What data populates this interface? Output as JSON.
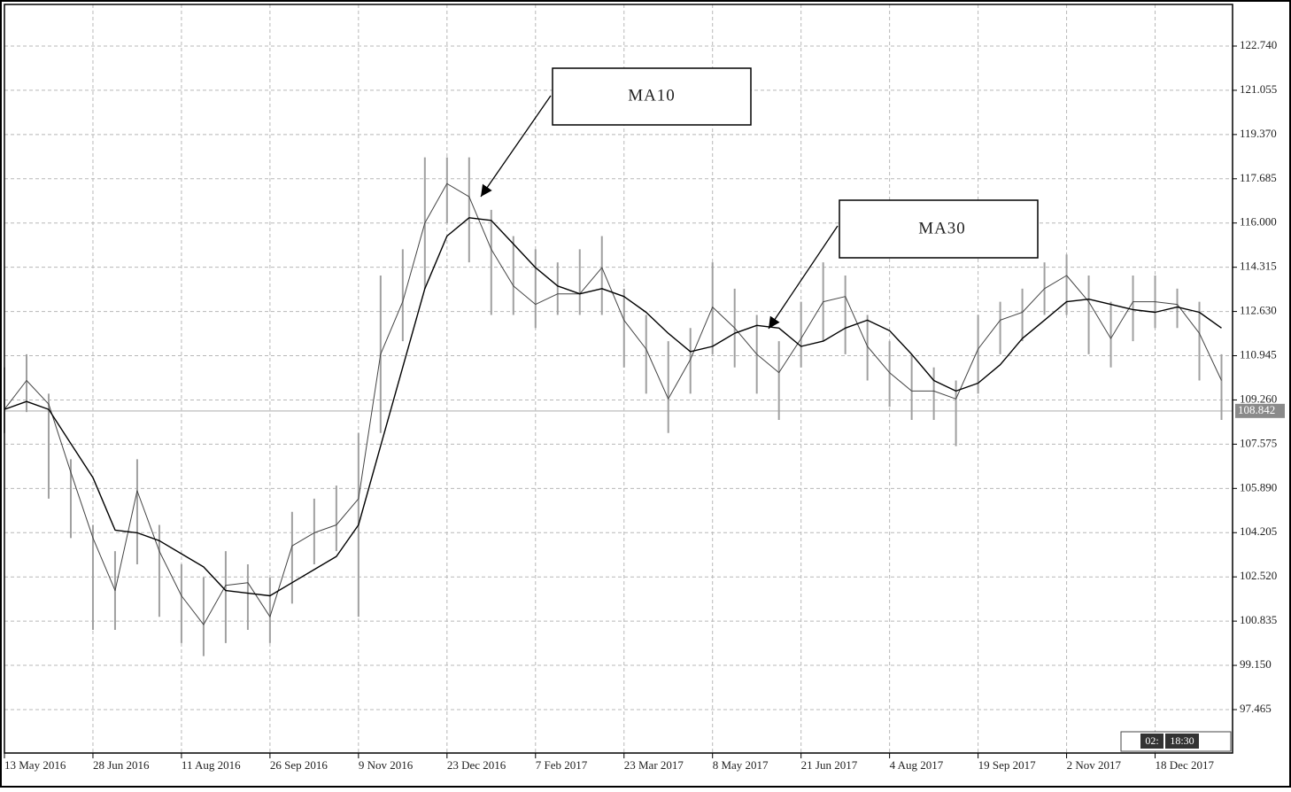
{
  "chart_data": {
    "type": "range_bar",
    "bar_color": "#a0a0a0",
    "x": [
      0,
      8,
      16,
      24,
      32,
      40,
      48,
      56,
      64,
      72,
      80,
      88,
      96,
      104,
      112,
      120,
      128,
      136,
      144,
      152,
      160,
      168,
      176,
      184,
      192,
      200,
      208,
      216,
      224,
      232,
      240,
      248,
      256,
      264,
      272,
      280,
      288,
      296,
      304,
      312,
      320,
      328,
      336,
      344,
      352,
      360,
      368,
      376,
      384,
      392,
      400,
      408,
      416,
      424,
      432,
      440
    ],
    "high": [
      110.5,
      111.0,
      109.5,
      107.0,
      104.5,
      103.5,
      107.0,
      104.5,
      103.0,
      102.5,
      103.5,
      103.0,
      102.5,
      105.0,
      105.5,
      106.0,
      108.0,
      114.0,
      115.0,
      118.5,
      118.5,
      118.5,
      116.5,
      115.5,
      115.0,
      114.5,
      115.0,
      115.5,
      113.5,
      112.5,
      111.5,
      112.0,
      114.5,
      113.5,
      112.5,
      111.5,
      113.0,
      114.5,
      114.0,
      112.5,
      111.5,
      111.0,
      110.5,
      110.0,
      112.5,
      113.0,
      113.5,
      114.5,
      114.8,
      114.0,
      113.0,
      114.0,
      114.0,
      113.5,
      113.0,
      111.0
    ],
    "low": [
      108.0,
      108.8,
      105.5,
      104.0,
      100.5,
      100.5,
      103.0,
      101.0,
      100.0,
      99.5,
      100.0,
      100.5,
      100.0,
      101.5,
      103.0,
      103.5,
      101.0,
      108.0,
      111.5,
      113.5,
      116.0,
      114.5,
      112.5,
      112.5,
      112.0,
      112.5,
      112.5,
      112.5,
      110.5,
      109.5,
      108.0,
      109.5,
      111.0,
      110.5,
      109.5,
      108.5,
      110.5,
      111.5,
      111.0,
      110.0,
      109.0,
      108.5,
      108.5,
      107.5,
      109.5,
      111.0,
      111.5,
      112.5,
      112.5,
      111.0,
      110.5,
      111.5,
      112.0,
      112.0,
      110.0,
      108.5
    ],
    "lines": [
      {
        "label": "MA10",
        "color": "#444444",
        "width": 1,
        "values": [
          108.9,
          110.0,
          109.1,
          106.5,
          104.0,
          102.0,
          105.8,
          103.5,
          101.8,
          100.7,
          102.2,
          102.3,
          101.0,
          103.7,
          104.2,
          104.5,
          105.5,
          111.0,
          113.0,
          116.0,
          117.5,
          117.0,
          115.0,
          113.6,
          112.9,
          113.3,
          113.3,
          114.3,
          112.3,
          111.2,
          109.3,
          110.8,
          112.8,
          112.0,
          111.0,
          110.3,
          111.6,
          113.0,
          113.2,
          111.3,
          110.3,
          109.6,
          109.6,
          109.3,
          111.2,
          112.3,
          112.6,
          113.5,
          114.0,
          113.0,
          111.6,
          113.0,
          113.0,
          112.9,
          111.8,
          110.0
        ]
      },
      {
        "label": "MA30",
        "color": "#000000",
        "width": 1.4,
        "values": [
          108.9,
          109.2,
          108.9,
          107.6,
          106.3,
          104.3,
          104.2,
          103.9,
          103.4,
          102.9,
          102.0,
          101.9,
          101.8,
          102.3,
          102.8,
          103.3,
          104.5,
          107.5,
          110.5,
          113.5,
          115.5,
          116.2,
          116.1,
          115.2,
          114.3,
          113.6,
          113.3,
          113.5,
          113.2,
          112.6,
          111.8,
          111.1,
          111.3,
          111.8,
          112.1,
          112.0,
          111.3,
          111.5,
          112.0,
          112.3,
          111.9,
          111.0,
          110.0,
          109.6,
          109.9,
          110.6,
          111.6,
          112.3,
          113.0,
          113.1,
          112.9,
          112.7,
          112.6,
          112.8,
          112.6,
          112.0
        ]
      }
    ],
    "xlim": [
      0,
      444
    ],
    "xticks": [
      {
        "value": 0,
        "label": "13 May 2016"
      },
      {
        "value": 32,
        "label": "28 Jun 2016"
      },
      {
        "value": 64,
        "label": "11 Aug 2016"
      },
      {
        "value": 96,
        "label": "26 Sep 2016"
      },
      {
        "value": 128,
        "label": "9 Nov 2016"
      },
      {
        "value": 160,
        "label": "23 Dec 2016"
      },
      {
        "value": 192,
        "label": "7 Feb 2017"
      },
      {
        "value": 224,
        "label": "23 Mar 2017"
      },
      {
        "value": 256,
        "label": "8 May 2017"
      },
      {
        "value": 288,
        "label": "21 Jun 2017"
      },
      {
        "value": 320,
        "label": "4 Aug 2017"
      },
      {
        "value": 352,
        "label": "19 Sep 2017"
      },
      {
        "value": 384,
        "label": "2 Nov 2017"
      },
      {
        "value": 416,
        "label": "18 Dec 2017"
      }
    ],
    "ylim": [
      95.811,
      124.326
    ],
    "yticks": [
      {
        "value": 97.465,
        "label": "97.465"
      },
      {
        "value": 99.15,
        "label": "99.150"
      },
      {
        "value": 100.835,
        "label": "100.835"
      },
      {
        "value": 102.52,
        "label": "102.520"
      },
      {
        "value": 104.205,
        "label": "104.205"
      },
      {
        "value": 105.89,
        "label": "105.890"
      },
      {
        "value": 107.575,
        "label": "107.575"
      },
      {
        "value": 109.26,
        "label": "109.260"
      },
      {
        "value": 110.945,
        "label": "110.945"
      },
      {
        "value": 112.63,
        "label": "112.630"
      },
      {
        "value": 114.315,
        "label": "114.315"
      },
      {
        "value": 116.0,
        "label": "116.000"
      },
      {
        "value": 117.685,
        "label": "117.685"
      },
      {
        "value": 119.37,
        "label": "119.370"
      },
      {
        "value": 121.055,
        "label": "121.055"
      },
      {
        "value": 122.74,
        "label": "122.740"
      }
    ],
    "grid": true,
    "last_price": {
      "value": 108.842,
      "label": "108.842"
    },
    "timer": [
      "02:",
      "18:30"
    ]
  }
}
